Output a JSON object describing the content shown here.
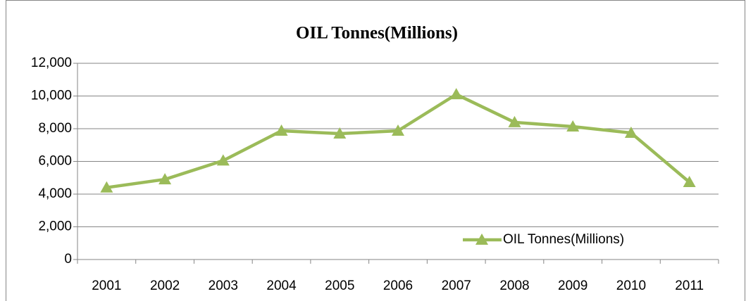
{
  "chart_data": {
    "type": "line",
    "title": "OIL Tonnes(Millions)",
    "categories": [
      "2001",
      "2002",
      "2003",
      "2004",
      "2005",
      "2006",
      "2007",
      "2008",
      "2009",
      "2010",
      "2011"
    ],
    "series": [
      {
        "name": "OIL Tonnes(Millions)",
        "color": "#9bbb59",
        "values": [
          4400,
          4900,
          6050,
          7870,
          7700,
          7870,
          10100,
          8390,
          8130,
          7740,
          4730
        ]
      }
    ],
    "ylim": [
      0,
      12000
    ],
    "yticks": [
      0,
      {
        "value": 2000,
        "label": "2,000"
      },
      {
        "value": 4000,
        "label": "4,000"
      },
      {
        "value": 6000,
        "label": "6,000"
      },
      {
        "value": 8000,
        "label": "8,000"
      },
      {
        "value": 10000,
        "label": "10,000"
      },
      {
        "value": 12000,
        "label": "12,000"
      }
    ],
    "grid": true,
    "legend": "lower-right",
    "marker": "triangle"
  }
}
